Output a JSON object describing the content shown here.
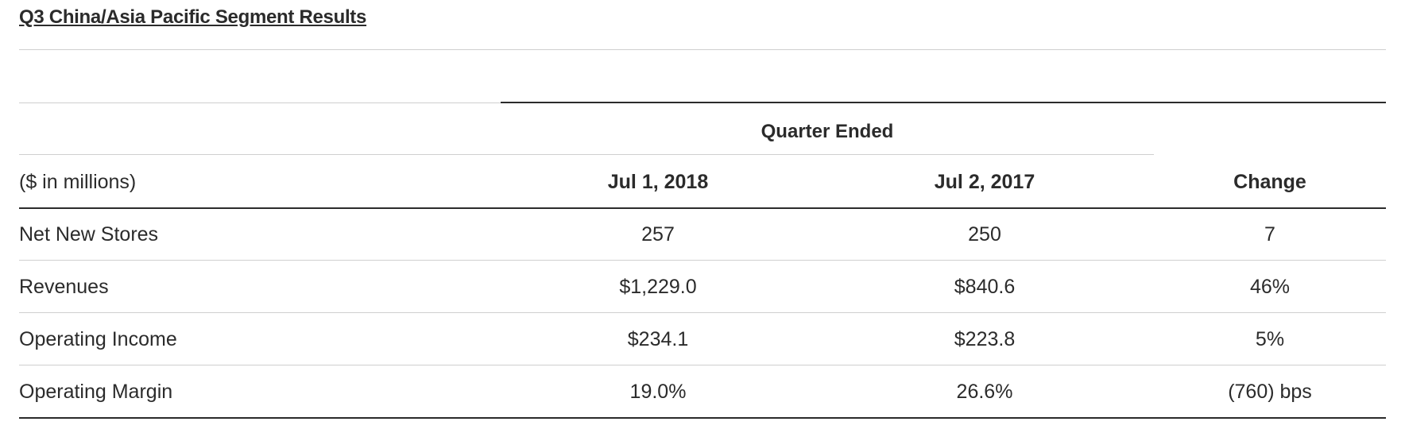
{
  "title": "Q3 China/Asia Pacific Segment Results",
  "table": {
    "group_header": "Quarter Ended",
    "header": {
      "label": "($ in millions)",
      "col1": "Jul 1, 2018",
      "col2": "Jul 2, 2017",
      "col3": "Change"
    },
    "rows": [
      {
        "label": "Net New Stores",
        "col1": "257",
        "col2": "250",
        "col3": "7"
      },
      {
        "label": "Revenues",
        "col1": "$1,229.0",
        "col2": "$840.6",
        "col3": "46%"
      },
      {
        "label": "Operating Income",
        "col1": "$234.1",
        "col2": "$223.8",
        "col3": "5%"
      },
      {
        "label": "Operating Margin",
        "col1": "19.0%",
        "col2": "26.6%",
        "col3": "(760) bps"
      }
    ]
  }
}
